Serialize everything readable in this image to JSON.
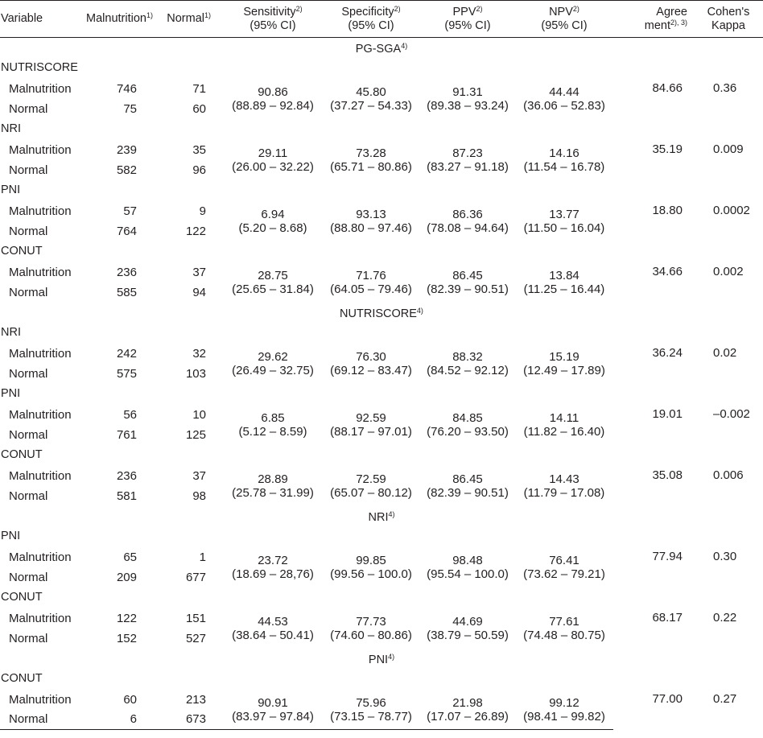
{
  "header": {
    "variable": "Variable",
    "malnutrition": "Malnutrition",
    "normal": "Normal",
    "sensitivity": "Sensitivity",
    "specificity": "Specificity",
    "ppv": "PPV",
    "npv": "NPV",
    "ci": "(95% CI)",
    "agree_1": "Agree",
    "agree_2": "ment",
    "kappa_1": "Cohen's",
    "kappa_2": "Kappa",
    "sup1": "1)",
    "sup2": "2)",
    "sup23": "2), 3)",
    "sup4": "4)"
  },
  "row_labels": {
    "malnutrition": "Malnutrition",
    "normal": "Normal"
  },
  "sections": [
    {
      "title": "PG-SGA",
      "groups": [
        {
          "name": "NUTRISCORE",
          "mal": [
            "746",
            "71"
          ],
          "nor": [
            "75",
            "60"
          ],
          "sens": [
            "90.86",
            "(88.89 – 92.84)"
          ],
          "spec": [
            "45.80",
            "(37.27 – 54.33)"
          ],
          "ppv": [
            "91.31",
            "(89.38 – 93.24)"
          ],
          "npv": [
            "44.44",
            "(36.06 – 52.83)"
          ],
          "agree": "84.66",
          "kappa": "0.36"
        },
        {
          "name": "NRI",
          "mal": [
            "239",
            "35"
          ],
          "nor": [
            "582",
            "96"
          ],
          "sens": [
            "29.11",
            "(26.00 – 32.22)"
          ],
          "spec": [
            "73.28",
            "(65.71 – 80.86)"
          ],
          "ppv": [
            "87.23",
            "(83.27 – 91.18)"
          ],
          "npv": [
            "14.16",
            "(11.54 – 16.78)"
          ],
          "agree": "35.19",
          "kappa": "0.009"
        },
        {
          "name": "PNI",
          "mal": [
            "57",
            "9"
          ],
          "nor": [
            "764",
            "122"
          ],
          "sens": [
            "6.94",
            "(5.20 – 8.68)"
          ],
          "spec": [
            "93.13",
            "(88.80 – 97.46)"
          ],
          "ppv": [
            "86.36",
            "(78.08 – 94.64)"
          ],
          "npv": [
            "13.77",
            "(11.50 – 16.04)"
          ],
          "agree": "18.80",
          "kappa": "0.0002"
        },
        {
          "name": "CONUT",
          "mal": [
            "236",
            "37"
          ],
          "nor": [
            "585",
            "94"
          ],
          "sens": [
            "28.75",
            "(25.65 – 31.84)"
          ],
          "spec": [
            "71.76",
            "(64.05 – 79.46)"
          ],
          "ppv": [
            "86.45",
            "(82.39 – 90.51)"
          ],
          "npv": [
            "13.84",
            "(11.25 – 16.44)"
          ],
          "agree": "34.66",
          "kappa": "0.002"
        }
      ]
    },
    {
      "title": "NUTRISCORE",
      "groups": [
        {
          "name": "NRI",
          "mal": [
            "242",
            "32"
          ],
          "nor": [
            "575",
            "103"
          ],
          "sens": [
            "29.62",
            "(26.49 – 32.75)"
          ],
          "spec": [
            "76.30",
            "(69.12 – 83.47)"
          ],
          "ppv": [
            "88.32",
            "(84.52 – 92.12)"
          ],
          "npv": [
            "15.19",
            "(12.49 – 17.89)"
          ],
          "agree": "36.24",
          "kappa": "0.02"
        },
        {
          "name": "PNI",
          "mal": [
            "56",
            "10"
          ],
          "nor": [
            "761",
            "125"
          ],
          "sens": [
            "6.85",
            "(5.12 – 8.59)"
          ],
          "spec": [
            "92.59",
            "(88.17 – 97.01)"
          ],
          "ppv": [
            "84.85",
            "(76.20 – 93.50)"
          ],
          "npv": [
            "14.11",
            "(11.82 – 16.40)"
          ],
          "agree": "19.01",
          "kappa": "–0.002"
        },
        {
          "name": "CONUT",
          "mal": [
            "236",
            "37"
          ],
          "nor": [
            "581",
            "98"
          ],
          "sens": [
            "28.89",
            "(25.78 – 31.99)"
          ],
          "spec": [
            "72.59",
            "(65.07 – 80.12)"
          ],
          "ppv": [
            "86.45",
            "(82.39 – 90.51)"
          ],
          "npv": [
            "14.43",
            "(11.79 – 17.08)"
          ],
          "agree": "35.08",
          "kappa": "0.006"
        }
      ]
    },
    {
      "title": "NRI",
      "groups": [
        {
          "name": "PNI",
          "mal": [
            "65",
            "1"
          ],
          "nor": [
            "209",
            "677"
          ],
          "sens": [
            "23.72",
            "(18.69 – 28,76)"
          ],
          "spec": [
            "99.85",
            "(99.56 – 100.0)"
          ],
          "ppv": [
            "98.48",
            "(95.54 – 100.0)"
          ],
          "npv": [
            "76.41",
            "(73.62 – 79.21)"
          ],
          "agree": "77.94",
          "kappa": "0.30"
        },
        {
          "name": "CONUT",
          "mal": [
            "122",
            "151"
          ],
          "nor": [
            "152",
            "527"
          ],
          "sens": [
            "44.53",
            "(38.64 – 50.41)"
          ],
          "spec": [
            "77.73",
            "(74.60 – 80.86)"
          ],
          "ppv": [
            "44.69",
            "(38.79 – 50.59)"
          ],
          "npv": [
            "77.61",
            "(74.48 – 80.75)"
          ],
          "agree": "68.17",
          "kappa": "0.22"
        }
      ]
    },
    {
      "title": "PNI",
      "groups": [
        {
          "name": "CONUT",
          "mal": [
            "60",
            "213"
          ],
          "nor": [
            "6",
            "673"
          ],
          "sens": [
            "90.91",
            "(83.97 – 97.84)"
          ],
          "spec": [
            "75.96",
            "(73.15 – 78.77)"
          ],
          "ppv": [
            "21.98",
            "(17.07 – 26.89)"
          ],
          "npv": [
            "99.12",
            "(98.41 – 99.82)"
          ],
          "agree": "77.00",
          "kappa": "0.27"
        }
      ]
    }
  ]
}
